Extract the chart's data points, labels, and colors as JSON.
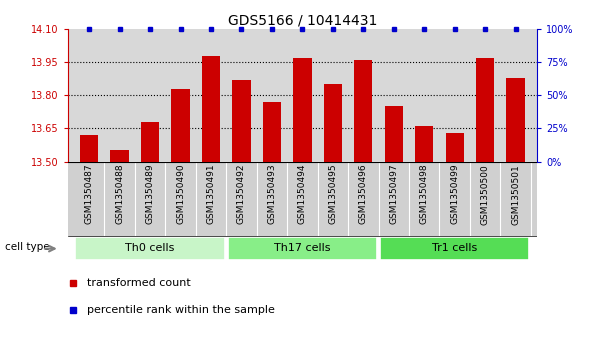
{
  "title": "GDS5166 / 10414431",
  "samples": [
    "GSM1350487",
    "GSM1350488",
    "GSM1350489",
    "GSM1350490",
    "GSM1350491",
    "GSM1350492",
    "GSM1350493",
    "GSM1350494",
    "GSM1350495",
    "GSM1350496",
    "GSM1350497",
    "GSM1350498",
    "GSM1350499",
    "GSM1350500",
    "GSM1350501"
  ],
  "transformed_counts": [
    13.62,
    13.55,
    13.68,
    13.83,
    13.98,
    13.87,
    13.77,
    13.97,
    13.85,
    13.96,
    13.75,
    13.66,
    13.63,
    13.97,
    13.88
  ],
  "percentile_ranks": [
    100,
    100,
    100,
    100,
    100,
    100,
    100,
    100,
    100,
    100,
    100,
    100,
    100,
    100,
    100
  ],
  "ylim_left": [
    13.5,
    14.1
  ],
  "ylim_right": [
    0,
    100
  ],
  "yticks_left": [
    13.5,
    13.65,
    13.8,
    13.95,
    14.1
  ],
  "yticks_right": [
    0,
    25,
    50,
    75,
    100
  ],
  "ytick_labels_right": [
    "0%",
    "25%",
    "50%",
    "75%",
    "100%"
  ],
  "bar_color": "#cc0000",
  "dot_color": "#0000cc",
  "bar_width": 0.6,
  "groups": [
    {
      "label": "Th0 cells",
      "start": 0,
      "end": 4,
      "color": "#c8f5c8"
    },
    {
      "label": "Th17 cells",
      "start": 5,
      "end": 9,
      "color": "#88ee88"
    },
    {
      "label": "Tr1 cells",
      "start": 10,
      "end": 14,
      "color": "#55dd55"
    }
  ],
  "cell_type_label": "cell type",
  "legend_items": [
    {
      "label": "transformed count",
      "color": "#cc0000"
    },
    {
      "label": "percentile rank within the sample",
      "color": "#0000cc"
    }
  ],
  "grid_color": "black",
  "plot_bg_color": "#d8d8d8",
  "xticklabel_bg_color": "#d0d0d0",
  "title_fontsize": 10,
  "tick_fontsize": 7,
  "axis_color_left": "#cc0000",
  "axis_color_right": "#0000cc"
}
